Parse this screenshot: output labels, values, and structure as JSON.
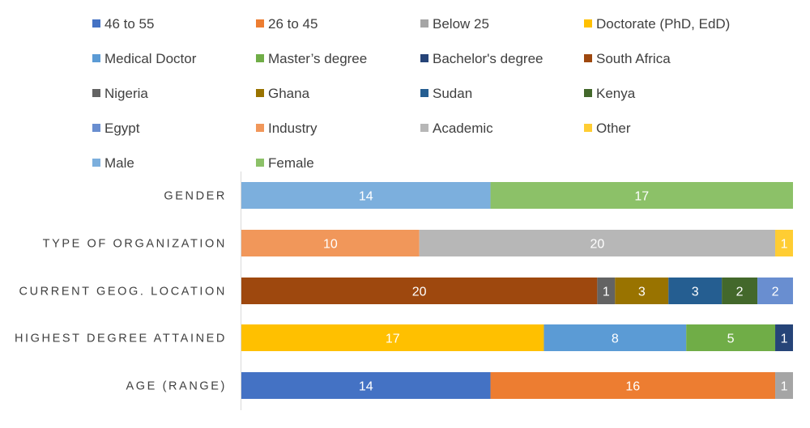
{
  "chart_data": {
    "type": "bar",
    "orientation": "horizontal",
    "stacked": true,
    "title": "",
    "xlabel": "",
    "ylabel": "",
    "xlim": [
      0,
      31
    ],
    "grid": false,
    "legend_position": "top",
    "legend": [
      {
        "label": "46 to 55",
        "color": "#4472C4"
      },
      {
        "label": "26 to 45",
        "color": "#ED7D31"
      },
      {
        "label": "Below 25",
        "color": "#A5A5A5"
      },
      {
        "label": "Doctorate (PhD, EdD)",
        "color": "#FFC000"
      },
      {
        "label": "Medical Doctor",
        "color": "#5B9BD5"
      },
      {
        "label": "Master’s degree",
        "color": "#70AD47"
      },
      {
        "label": "Bachelor's degree",
        "color": "#264478"
      },
      {
        "label": "South Africa",
        "color": "#9E480E"
      },
      {
        "label": "Nigeria",
        "color": "#636363"
      },
      {
        "label": "Ghana",
        "color": "#997300"
      },
      {
        "label": "Sudan",
        "color": "#255E91"
      },
      {
        "label": "Kenya",
        "color": "#43682B"
      },
      {
        "label": "Egypt",
        "color": "#698ED0"
      },
      {
        "label": "Industry",
        "color": "#F1975A"
      },
      {
        "label": "Academic",
        "color": "#B7B7B7"
      },
      {
        "label": "Other",
        "color": "#FFCD33"
      },
      {
        "label": "Male",
        "color": "#7CAFDD"
      },
      {
        "label": "Female",
        "color": "#8CC168"
      }
    ],
    "categories": [
      "GENDER",
      "TYPE OF ORGANIZATION",
      "CURRENT GEOG. LOCATION",
      "HIGHEST DEGREE ATTAINED",
      "AGE (RANGE)"
    ],
    "rows": [
      {
        "category": "GENDER",
        "segments": [
          {
            "label": "Male",
            "value": 14,
            "color": "#7CAFDD"
          },
          {
            "label": "Female",
            "value": 17,
            "color": "#8CC168"
          }
        ]
      },
      {
        "category": "TYPE OF ORGANIZATION",
        "segments": [
          {
            "label": "Industry",
            "value": 10,
            "color": "#F1975A"
          },
          {
            "label": "Academic",
            "value": 20,
            "color": "#B7B7B7"
          },
          {
            "label": "Other",
            "value": 1,
            "color": "#FFCD33"
          }
        ]
      },
      {
        "category": "CURRENT GEOG. LOCATION",
        "segments": [
          {
            "label": "South Africa",
            "value": 20,
            "color": "#9E480E"
          },
          {
            "label": "Nigeria",
            "value": 1,
            "color": "#636363"
          },
          {
            "label": "Ghana",
            "value": 3,
            "color": "#997300"
          },
          {
            "label": "Sudan",
            "value": 3,
            "color": "#255E91"
          },
          {
            "label": "Kenya",
            "value": 2,
            "color": "#43682B"
          },
          {
            "label": "Egypt",
            "value": 2,
            "color": "#698ED0"
          }
        ]
      },
      {
        "category": "HIGHEST DEGREE ATTAINED",
        "segments": [
          {
            "label": "Doctorate (PhD, EdD)",
            "value": 17,
            "color": "#FFC000"
          },
          {
            "label": "Medical Doctor",
            "value": 8,
            "color": "#5B9BD5"
          },
          {
            "label": "Master’s degree",
            "value": 5,
            "color": "#70AD47"
          },
          {
            "label": "Bachelor's degree",
            "value": 1,
            "color": "#264478"
          }
        ]
      },
      {
        "category": "AGE (RANGE)",
        "segments": [
          {
            "label": "46 to 55",
            "value": 14,
            "color": "#4472C4"
          },
          {
            "label": "26 to 45",
            "value": 16,
            "color": "#ED7D31"
          },
          {
            "label": "Below 25",
            "value": 1,
            "color": "#A5A5A5"
          }
        ]
      }
    ]
  }
}
